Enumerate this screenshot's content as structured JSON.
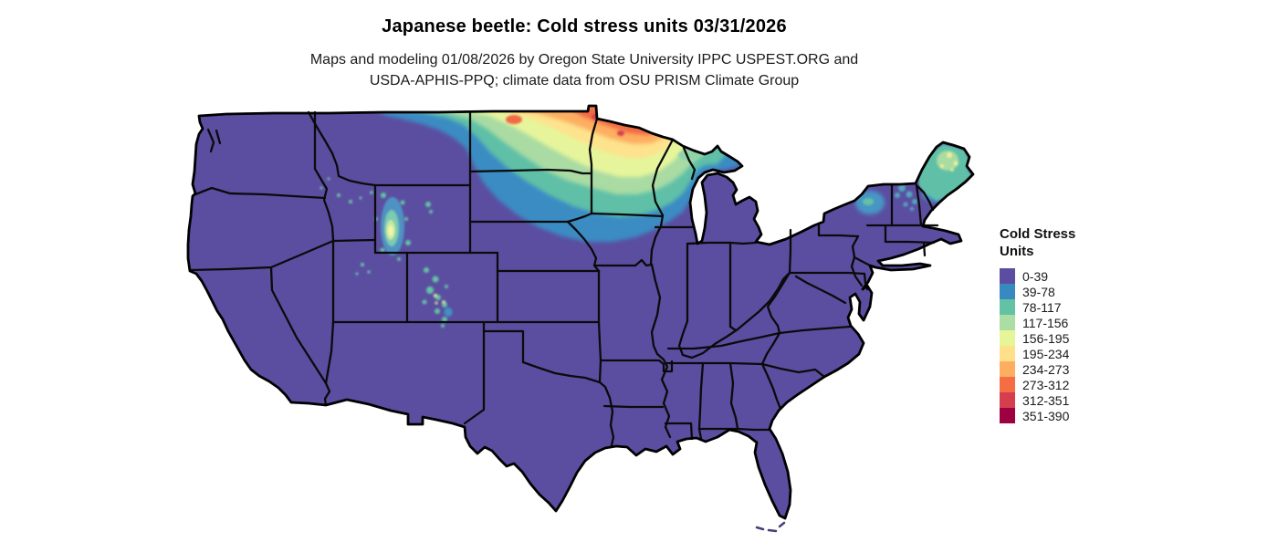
{
  "header": {
    "title": "Japanese beetle: Cold stress units 03/31/2026",
    "subtitle_line1": "Maps and modeling 01/08/2026 by Oregon State University IPPC USPEST.ORG and",
    "subtitle_line2": "USDA-APHIS-PPQ; climate data from OSU PRISM Climate Group"
  },
  "legend": {
    "title_line1": "Cold Stress",
    "title_line2": "Units",
    "items": [
      {
        "label": "0-39",
        "color": "#5b4ea1"
      },
      {
        "label": "39-78",
        "color": "#3789c0"
      },
      {
        "label": "78-117",
        "color": "#63c2a4"
      },
      {
        "label": "117-156",
        "color": "#abdda4"
      },
      {
        "label": "156-195",
        "color": "#e6f598"
      },
      {
        "label": "195-234",
        "color": "#fee08b"
      },
      {
        "label": "234-273",
        "color": "#fdae61"
      },
      {
        "label": "273-312",
        "color": "#f46d43"
      },
      {
        "label": "312-351",
        "color": "#d53e4f"
      },
      {
        "label": "351-390",
        "color": "#9e0142"
      }
    ]
  },
  "map": {
    "region": "Contiguous United States",
    "base_fill_color": "#5b4ea1",
    "state_border_color": "#000000",
    "background_color": "#ffffff"
  },
  "chart_data": {
    "type": "heatmap",
    "title": "Japanese beetle: Cold stress units 03/31/2026",
    "legend_title": "Cold Stress Units",
    "unit": "cold stress units accumulated through 03/31/2026",
    "bins": [
      {
        "range": "0-39",
        "color": "#5b4ea1"
      },
      {
        "range": "39-78",
        "color": "#3789c0"
      },
      {
        "range": "78-117",
        "color": "#63c2a4"
      },
      {
        "range": "117-156",
        "color": "#abdda4"
      },
      {
        "range": "156-195",
        "color": "#e6f598"
      },
      {
        "range": "195-234",
        "color": "#fee08b"
      },
      {
        "range": "234-273",
        "color": "#fdae61"
      },
      {
        "range": "273-312",
        "color": "#f46d43"
      },
      {
        "range": "312-351",
        "color": "#d53e4f"
      },
      {
        "range": "351-390",
        "color": "#9e0142"
      }
    ],
    "regions": [
      {
        "area": "Most of the contiguous US (south, west, east)",
        "value": "0-39"
      },
      {
        "area": "Northern Minnesota (arrowhead, peak near Lake Superior)",
        "value": "234-351"
      },
      {
        "area": "Northern North Dakota along Canadian border",
        "value": "117-312"
      },
      {
        "area": "Southern North Dakota / northern South Dakota band",
        "value": "39-117"
      },
      {
        "area": "Northern Wisconsin / western Upper Michigan",
        "value": "39-156"
      },
      {
        "area": "Northeastern Montana border strip",
        "value": "39-117"
      },
      {
        "area": "Northern Maine",
        "value": "78-195"
      },
      {
        "area": "Adirondacks NY and northern VT/NH",
        "value": "39-117"
      },
      {
        "area": "High Rockies pockets (NW Wyoming, central Colorado, N New Mexico, ID/UT peaks)",
        "value": "39-195"
      }
    ]
  }
}
